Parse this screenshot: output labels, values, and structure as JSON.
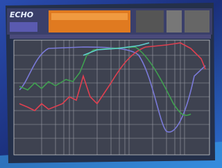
{
  "header": {
    "logo": "ECHO"
  }
}
